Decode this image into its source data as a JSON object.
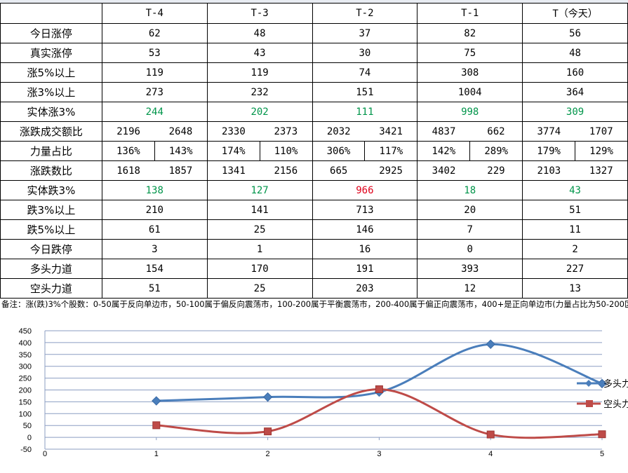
{
  "table": {
    "headers": [
      "",
      "T-4",
      "T-3",
      "T-2",
      "T-1",
      "T（今天）"
    ],
    "rows": [
      {
        "label": "今日涨停",
        "values": [
          "62",
          "48",
          "37",
          "82",
          "56"
        ]
      },
      {
        "label": "真实涨停",
        "values": [
          "53",
          "43",
          "30",
          "75",
          "48"
        ]
      },
      {
        "label": "涨5%以上",
        "values": [
          "119",
          "119",
          "74",
          "308",
          "160"
        ]
      },
      {
        "label": "涨3%以上",
        "values": [
          "273",
          "232",
          "151",
          "1004",
          "364"
        ]
      },
      {
        "label": "实体涨3%",
        "values": [
          "244",
          "202",
          "111",
          "998",
          "309"
        ]
      },
      {
        "label": "涨跌成交额比",
        "pairs": [
          [
            "2196",
            "2648"
          ],
          [
            "2330",
            "2373"
          ],
          [
            "2032",
            "3421"
          ],
          [
            "4837",
            "662"
          ],
          [
            "3774",
            "1707"
          ]
        ]
      },
      {
        "label": "力量占比",
        "pairs": [
          [
            "136%",
            "143%"
          ],
          [
            "174%",
            "110%"
          ],
          [
            "306%",
            "117%"
          ],
          [
            "142%",
            "289%"
          ],
          [
            "179%",
            "129%"
          ]
        ]
      },
      {
        "label": "涨跌数比",
        "pairs": [
          [
            "1618",
            "1857"
          ],
          [
            "1341",
            "2156"
          ],
          [
            "665",
            "2925"
          ],
          [
            "3402",
            "229"
          ],
          [
            "2103",
            "1327"
          ]
        ]
      },
      {
        "label": "实体跌3%",
        "values": [
          "138",
          "127",
          "966",
          "18",
          "43"
        ]
      },
      {
        "label": "跌3%以上",
        "values": [
          "210",
          "141",
          "713",
          "20",
          "51"
        ]
      },
      {
        "label": "跌5%以上",
        "values": [
          "61",
          "25",
          "146",
          "7",
          "11"
        ]
      },
      {
        "label": "今日跌停",
        "values": [
          "3",
          "1",
          "16",
          "0",
          "2"
        ]
      },
      {
        "label": "多头力道",
        "values": [
          "154",
          "170",
          "191",
          "393",
          "227"
        ]
      },
      {
        "label": "空头力道",
        "values": [
          "51",
          "25",
          "203",
          "12",
          "13"
        ]
      }
    ]
  },
  "note": "备注：涨(跌)3%个股数：0-50属于反向单边市，50-100属于偏反向震荡市，100-200属于平衡震荡市，200-400属于偏正向震荡市，400+是正向单边市(力量占比为50-200区",
  "colors": {
    "green": "#00954a",
    "red": "#e0001a",
    "bull": "#4a7ebb",
    "bear": "#be4b48"
  },
  "chart_data": {
    "type": "line",
    "smooth": true,
    "x": [
      1,
      2,
      3,
      4,
      5
    ],
    "x_ticks": [
      "0",
      "1",
      "2",
      "3",
      "4",
      "5"
    ],
    "xlim": [
      0,
      5
    ],
    "y_ticks": [
      "450",
      "400",
      "350",
      "300",
      "250",
      "200",
      "150",
      "100",
      "50",
      "0",
      "-50"
    ],
    "ylim": [
      -50,
      450
    ],
    "grid": true,
    "legend": "right",
    "series": [
      {
        "name": "多头力",
        "values": [
          154,
          170,
          191,
          393,
          227
        ],
        "color": "#4a7ebb",
        "marker": "diamond"
      },
      {
        "name": "空头力",
        "values": [
          51,
          25,
          203,
          12,
          13
        ],
        "color": "#be4b48",
        "marker": "square"
      }
    ]
  }
}
